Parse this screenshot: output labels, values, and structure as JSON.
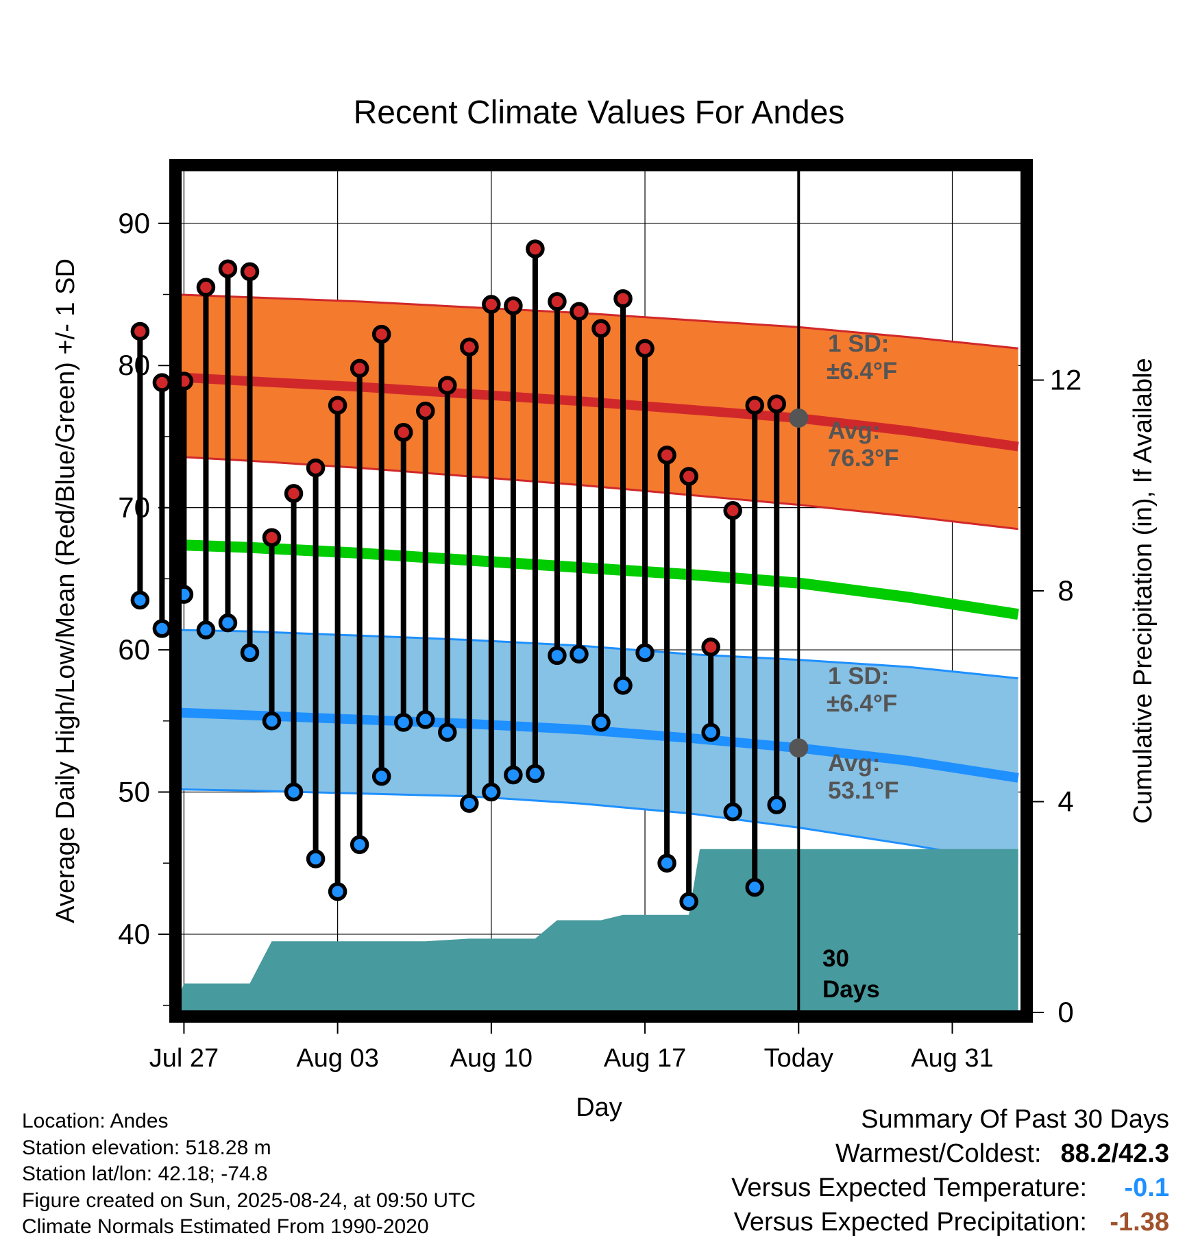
{
  "chart_data": {
    "type": "line",
    "title": "Recent Climate Values For Andes",
    "xlabel": "Day",
    "ylabel": "Average Daily High/Low/Mean (Red/Blue/Green) +/- 1 SD",
    "y2label": "Cumulative Precipitation (in), If Available",
    "ylim": [
      34.5,
      93.8
    ],
    "y2lim": [
      0,
      16
    ],
    "xlim": [
      -28.2,
      10.2
    ],
    "x_unit": "days relative to Today (Aug 24)",
    "x_ticks": [
      {
        "x": -28,
        "label": "Jul 27"
      },
      {
        "x": -21,
        "label": "Aug 03"
      },
      {
        "x": -14,
        "label": "Aug 10"
      },
      {
        "x": -7,
        "label": "Aug 17"
      },
      {
        "x": 0,
        "label": "Today"
      },
      {
        "x": 7,
        "label": "Aug 31"
      }
    ],
    "y_ticks": [
      40,
      50,
      60,
      70,
      80,
      90
    ],
    "y2_ticks": [
      0,
      4,
      8,
      12
    ],
    "grid": true,
    "today_x": 0,
    "period_label": "30 Days",
    "high_sd_label": "1 SD:",
    "high_sd_value": "±6.4°F",
    "high_avg_label": "Avg:",
    "high_avg_value": "76.3°F",
    "low_sd_label": "1 SD:",
    "low_sd_value": "±6.4°F",
    "low_avg_label": "Avg:",
    "low_avg_value": "53.1°F",
    "high_normal": {
      "x": [
        -30,
        -25,
        -20,
        -15,
        -10,
        -5,
        0,
        5,
        10
      ],
      "mean": [
        79.2,
        78.9,
        78.5,
        78.0,
        77.5,
        76.9,
        76.3,
        75.4,
        74.3
      ],
      "upper": [
        85.0,
        84.8,
        84.5,
        84.1,
        83.7,
        83.2,
        82.7,
        82.0,
        81.2
      ],
      "lower": [
        73.6,
        73.3,
        72.8,
        72.2,
        71.6,
        70.9,
        70.2,
        69.4,
        68.5
      ]
    },
    "mean_normal": {
      "x": [
        -30,
        -25,
        -20,
        -15,
        -10,
        -5,
        0,
        5,
        10
      ],
      "values": [
        67.4,
        67.2,
        66.8,
        66.3,
        65.8,
        65.3,
        64.7,
        63.7,
        62.5
      ]
    },
    "low_normal": {
      "x": [
        -30,
        -25,
        -20,
        -15,
        -10,
        -5,
        0,
        5,
        10
      ],
      "mean": [
        55.6,
        55.4,
        55.1,
        54.8,
        54.4,
        53.8,
        53.1,
        52.2,
        51.0
      ],
      "upper": [
        61.4,
        61.3,
        61.0,
        60.7,
        60.3,
        59.7,
        59.3,
        58.8,
        58.0
      ],
      "lower": [
        50.2,
        50.1,
        49.9,
        49.7,
        49.2,
        48.5,
        47.5,
        46.3,
        45.0
      ]
    },
    "daily": {
      "x": [
        -30,
        -29,
        -28,
        -27,
        -26,
        -25,
        -24,
        -23,
        -22,
        -21,
        -20,
        -19,
        -18,
        -17,
        -16,
        -15,
        -14,
        -13,
        -12,
        -11,
        -10,
        -9,
        -8,
        -7,
        -6,
        -5,
        -4,
        -3,
        -2,
        -1
      ],
      "high": [
        82.4,
        78.8,
        78.9,
        85.5,
        86.8,
        86.6,
        67.9,
        71.0,
        72.8,
        77.2,
        79.8,
        82.2,
        75.3,
        76.8,
        78.6,
        81.3,
        84.3,
        84.2,
        88.2,
        84.5,
        83.8,
        82.6,
        84.7,
        81.2,
        73.7,
        72.2,
        60.2,
        69.8,
        77.2,
        77.3
      ],
      "low": [
        63.5,
        61.5,
        63.9,
        61.4,
        61.9,
        59.8,
        55.0,
        50.0,
        45.3,
        43.0,
        46.3,
        51.1,
        54.9,
        55.1,
        54.2,
        49.2,
        50.0,
        51.2,
        51.3,
        59.6,
        59.7,
        54.9,
        57.5,
        59.8,
        45.0,
        42.3,
        54.2,
        48.6,
        43.3,
        49.1
      ]
    },
    "precip_cumulative": {
      "x": [
        -30,
        -28.8,
        -28,
        -25,
        -24,
        -17,
        -15,
        -12,
        -11,
        -9,
        -8,
        -5,
        -4.5,
        0,
        10
      ],
      "values": [
        0,
        0,
        0.55,
        0.55,
        1.35,
        1.35,
        1.4,
        1.4,
        1.75,
        1.75,
        1.85,
        1.85,
        3.1,
        3.1,
        3.1
      ]
    }
  },
  "footer": {
    "location": "Location: Andes",
    "elevation": "Station elevation: 518.28 m",
    "latlon": "Station lat/lon: 42.18; -74.8",
    "created": "Figure created on Sun, 2025-08-24, at 09:50 UTC",
    "normals": "Climate Normals Estimated From 1990-2020"
  },
  "summary": {
    "heading": "Summary Of Past 30 Days",
    "warmest_label": "Warmest/Coldest:",
    "warmest_value": "88.2/42.3",
    "temp_label": "Versus Expected Temperature:",
    "temp_value": "-0.1",
    "precip_label": "Versus Expected Precipitation:",
    "precip_value": "-1.38"
  },
  "colors": {
    "high_band": "#f47a2e",
    "high_line": "#d0282a",
    "mean_line": "#00cc00",
    "low_band": "#86c1e6",
    "low_line": "#1e90ff",
    "precip": "#479a9e",
    "annotation": "#555555",
    "temp_anomaly": "#1e90ff",
    "precip_anomaly": "#a0522d"
  }
}
